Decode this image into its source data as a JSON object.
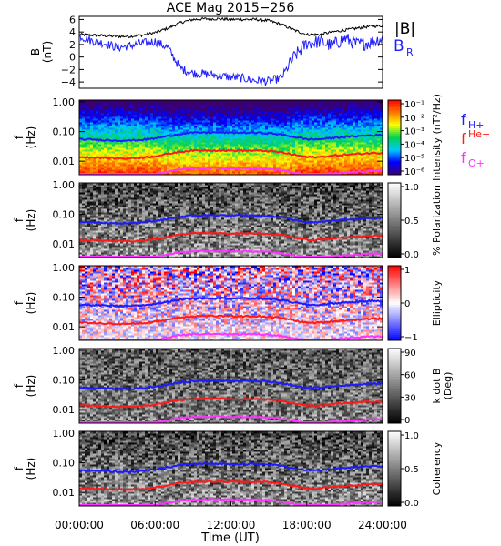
{
  "figure": {
    "title": "ACE Mag 2015−256",
    "time_axis_label": "Time (UT)",
    "time_ticks": [
      "00:00:00",
      "06:00:00",
      "12:00:00",
      "18:00:00",
      "24:00:00"
    ]
  },
  "chart_data": [
    {
      "type": "line",
      "panel": "magnetic-field",
      "ylabel": "B",
      "yunit": "(nT)",
      "ylim": [
        -5,
        6.5
      ],
      "y_ticks": [
        "6",
        "4",
        "2",
        "0",
        "−2",
        "−4"
      ],
      "x_unit": "hours UT",
      "xlim": [
        0,
        24
      ],
      "series": [
        {
          "name": "|B|",
          "color": "#000000",
          "x": [
            0,
            1,
            2,
            3,
            4,
            5,
            6,
            7,
            8,
            9,
            10,
            11,
            12,
            13,
            14,
            15,
            16,
            17,
            18,
            19,
            20,
            21,
            22,
            23,
            24
          ],
          "values": [
            3.6,
            3.5,
            3.4,
            3.3,
            3.3,
            3.5,
            3.9,
            4.6,
            5.5,
            6.0,
            6.1,
            6.1,
            6.0,
            6.0,
            6.0,
            5.8,
            5.2,
            4.3,
            3.6,
            3.6,
            4.0,
            4.3,
            4.6,
            4.9,
            5.0
          ]
        },
        {
          "name": "B",
          "subscript": "R",
          "color": "#1e1eff",
          "x": [
            0,
            1,
            2,
            3,
            4,
            5,
            6,
            7,
            8,
            9,
            10,
            11,
            12,
            13,
            14,
            15,
            16,
            17,
            18,
            19,
            20,
            21,
            22,
            23,
            24
          ],
          "values": [
            3.4,
            2.6,
            2.2,
            1.5,
            1.8,
            2.2,
            2.5,
            1.5,
            -1.8,
            -2.6,
            -2.7,
            -3.0,
            -3.2,
            -3.4,
            -3.8,
            -3.9,
            -3.3,
            0.0,
            2.2,
            2.5,
            1.8,
            3.0,
            2.0,
            2.3,
            3.0
          ]
        }
      ]
    },
    {
      "type": "heatmap",
      "panel": "intensity",
      "ylabel": "f",
      "yunit": "(Hz)",
      "y_ticks": [
        "1.00",
        "0.10",
        "0.01"
      ],
      "colorbar_label": "Intensity (nT²/Hz)",
      "colorbar_ticks": [
        "10⁻¹",
        "10⁻²",
        "10⁻³",
        "10⁻⁴",
        "10⁻⁵",
        "10⁻⁶"
      ],
      "colormap": "rainbow"
    },
    {
      "type": "heatmap",
      "panel": "polarization",
      "ylabel": "f",
      "yunit": "(Hz)",
      "y_ticks": [
        "1.00",
        "0.10",
        "0.01"
      ],
      "colorbar_label": "% Polarization",
      "colorbar_ticks": [
        "1.0",
        "0.5",
        "0.0"
      ],
      "colormap": "gray"
    },
    {
      "type": "heatmap",
      "panel": "ellipticity",
      "ylabel": "f",
      "yunit": "(Hz)",
      "y_ticks": [
        "1.00",
        "0.10",
        "0.01"
      ],
      "colorbar_label": "Ellipticity",
      "colorbar_ticks": [
        "1",
        "0",
        "−1"
      ],
      "colormap": "blue-white-red"
    },
    {
      "type": "heatmap",
      "panel": "k-dot-b",
      "ylabel": "f",
      "yunit": "(Hz)",
      "y_ticks": [
        "1.00",
        "0.10",
        "0.01"
      ],
      "colorbar_label": "k dot B",
      "colorbar_unit": "(Deg)",
      "colorbar_ticks": [
        "90",
        "60",
        "30",
        "0"
      ],
      "colormap": "gray"
    },
    {
      "type": "heatmap",
      "panel": "coherency",
      "ylabel": "f",
      "yunit": "(Hz)",
      "y_ticks": [
        "1.00",
        "0.10",
        "0.01"
      ],
      "colorbar_label": "Coherency",
      "colorbar_ticks": [
        "1.0",
        "0.5",
        "0.0"
      ],
      "colormap": "gray"
    }
  ],
  "gyrofrequency_lines": {
    "x": [
      0,
      1,
      2,
      3,
      4,
      5,
      6,
      7,
      8,
      9,
      10,
      11,
      12,
      13,
      14,
      15,
      16,
      17,
      18,
      19,
      20,
      21,
      22,
      23,
      24
    ],
    "fH_hz": [
      0.055,
      0.054,
      0.052,
      0.05,
      0.05,
      0.053,
      0.059,
      0.07,
      0.084,
      0.091,
      0.093,
      0.093,
      0.091,
      0.091,
      0.091,
      0.088,
      0.079,
      0.066,
      0.055,
      0.055,
      0.061,
      0.066,
      0.07,
      0.075,
      0.076
    ],
    "series": [
      {
        "name": "f",
        "subscript": "H+",
        "color": "#1c1cff",
        "mass_ratio": 1
      },
      {
        "name": "f",
        "superscript": "He+",
        "color": "#ff1a1a",
        "mass_ratio": 4
      },
      {
        "name": "f",
        "subscript": "O+",
        "color": "#ff33ff",
        "mass_ratio": 16
      }
    ]
  },
  "colors": {
    "field_magnitude": "#000000",
    "field_radial": "#1e1eff",
    "h_plus": "#1c1cff",
    "he_plus": "#ff1a1a",
    "o_plus": "#ff33ff"
  }
}
